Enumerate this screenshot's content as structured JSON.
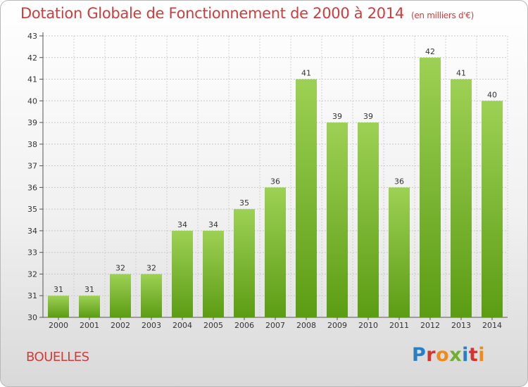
{
  "title": "Dotation Globale de Fonctionnement de 2000 à 2014",
  "unit_note": "(en milliers d'€)",
  "commune": "BOUELLES",
  "logo_text": "Proxiti",
  "colors": {
    "title": "#cc3d3d",
    "bar_top": "#9dd155",
    "bar_bottom": "#5c9c14"
  },
  "chart_data": {
    "type": "bar",
    "title": "Dotation Globale de Fonctionnement de 2000 à 2014",
    "subtitle": "(en milliers d'€)",
    "categories": [
      "2000",
      "2001",
      "2002",
      "2003",
      "2004",
      "2005",
      "2006",
      "2007",
      "2008",
      "2009",
      "2010",
      "2011",
      "2012",
      "2013",
      "2014"
    ],
    "values": [
      31,
      31,
      32,
      32,
      34,
      34,
      35,
      36,
      41,
      39,
      39,
      36,
      42,
      41,
      40
    ],
    "ylim": [
      30,
      43
    ],
    "yticks": [
      30,
      31,
      32,
      33,
      34,
      35,
      36,
      37,
      38,
      39,
      40,
      41,
      42,
      43
    ],
    "grid": true,
    "xlabel": "",
    "ylabel": ""
  }
}
